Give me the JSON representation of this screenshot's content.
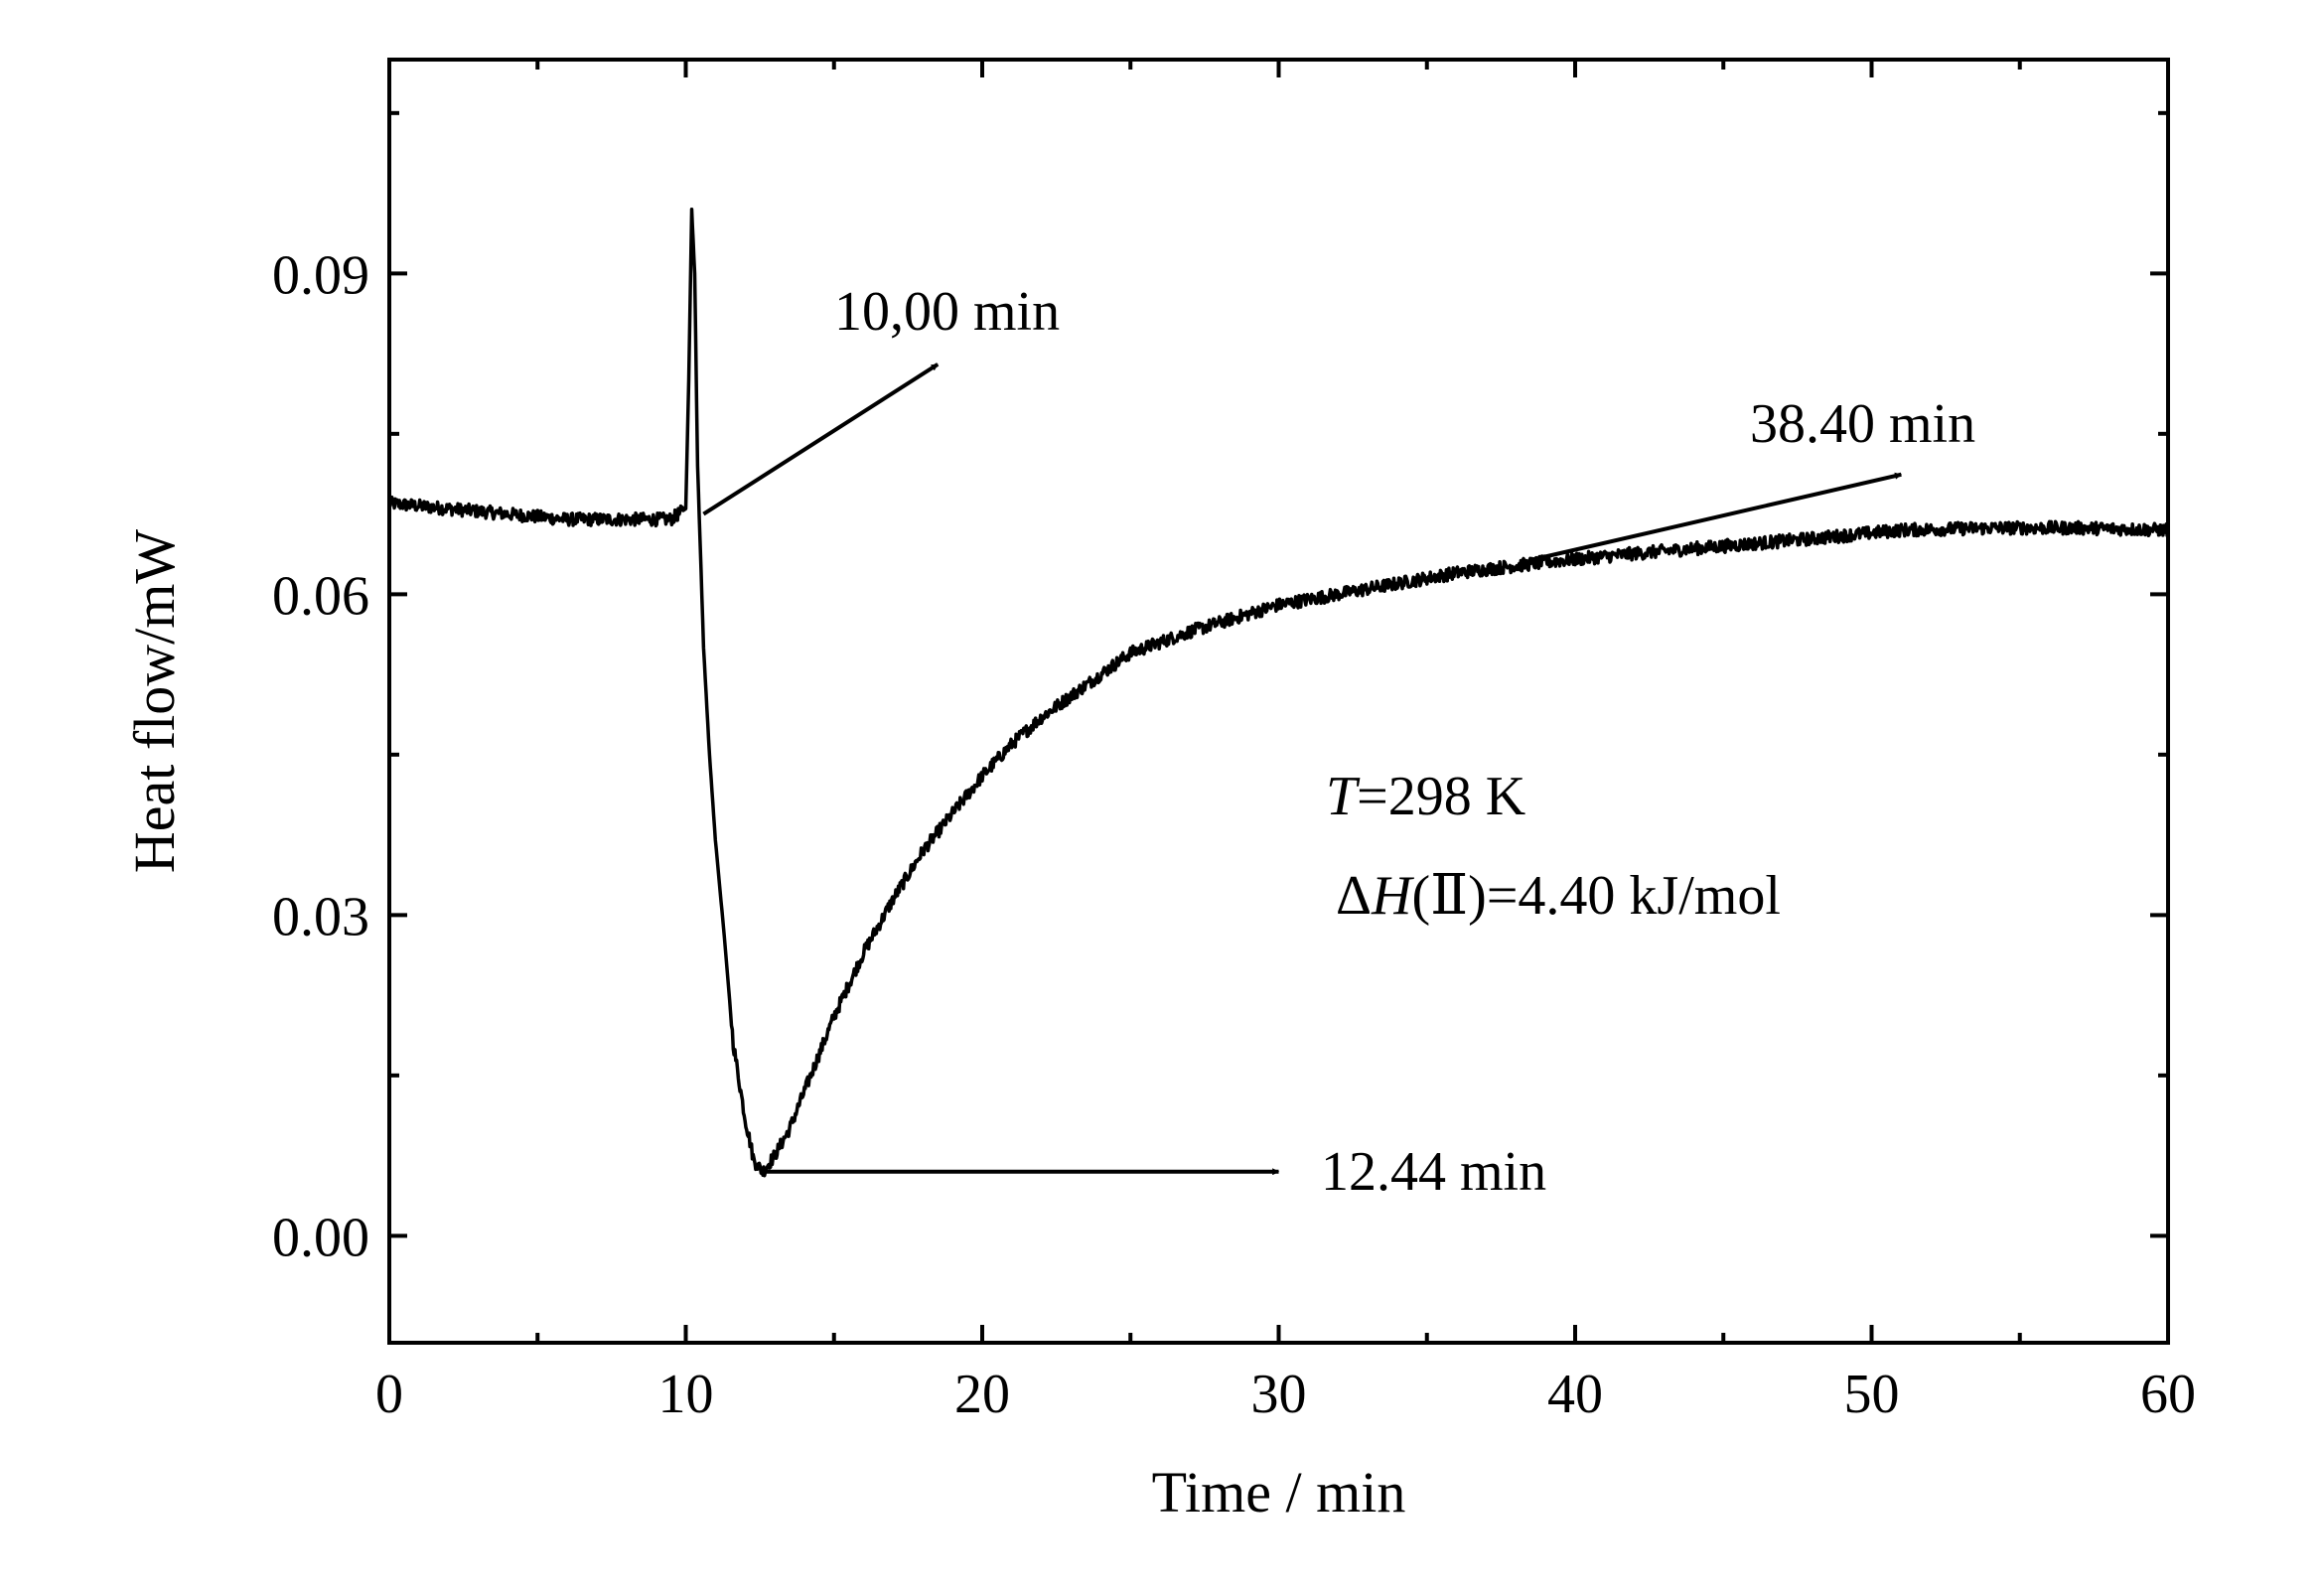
{
  "chart_data": {
    "type": "line",
    "xlabel": "Time / min",
    "ylabel": "Heat flow/mW",
    "xlim": [
      0,
      60
    ],
    "ylim": [
      -0.01,
      0.11
    ],
    "x_ticks": [
      0,
      10,
      20,
      30,
      40,
      50,
      60
    ],
    "x_minor_ticks": [
      5,
      15,
      25,
      35,
      45,
      55
    ],
    "x_tick_labels": [
      "0",
      "10",
      "20",
      "30",
      "40",
      "50",
      "60"
    ],
    "y_ticks": [
      0.0,
      0.03,
      0.06,
      0.09
    ],
    "y_minor_ticks": [
      -0.015,
      0.015,
      0.045,
      0.075,
      0.105
    ],
    "y_tick_labels": [
      "0.00",
      "0.03",
      "0.06",
      "0.09"
    ],
    "grid": false,
    "line_color": "#000000",
    "series": [
      {
        "x": [
          0,
          2,
          4,
          6,
          8,
          9.5,
          10.0,
          10.1,
          10.2,
          10.3,
          10.4,
          10.6,
          10.8,
          11.0,
          11.3,
          11.6,
          12.0,
          12.3,
          12.6,
          13.0,
          13.5,
          14.0,
          15.0,
          16.0,
          17.0,
          18.0,
          19.0,
          20.0,
          21.0,
          22.0,
          23.0,
          24.0,
          25.0,
          27.0,
          30.0,
          33.0,
          36.0,
          39.0,
          42.0,
          45.0,
          48.0,
          51.0,
          54.0,
          57.0,
          60.0
        ],
        "y": [
          0.0685,
          0.068,
          0.0675,
          0.067,
          0.067,
          0.067,
          0.068,
          0.08,
          0.096,
          0.09,
          0.072,
          0.055,
          0.045,
          0.037,
          0.028,
          0.018,
          0.011,
          0.007,
          0.006,
          0.0075,
          0.01,
          0.0135,
          0.0205,
          0.0265,
          0.0315,
          0.036,
          0.0395,
          0.043,
          0.046,
          0.0485,
          0.0505,
          0.0525,
          0.0545,
          0.0565,
          0.059,
          0.0605,
          0.062,
          0.063,
          0.0638,
          0.0645,
          0.0652,
          0.066,
          0.0662,
          0.0662,
          0.066
        ]
      }
    ],
    "annotations": [
      {
        "text": "10,00 min",
        "arrow_from": [
          10.6,
          0.0675
        ],
        "arrow_to": [
          18.5,
          0.0815
        ]
      },
      {
        "text": "12.44 min",
        "arrow_from": [
          12.6,
          0.006
        ],
        "arrow_to": [
          30.0,
          0.006
        ]
      },
      {
        "text": "38.40 min",
        "arrow_from": [
          38.5,
          0.0632
        ],
        "arrow_to": [
          51.0,
          0.0712
        ]
      }
    ],
    "condition_T_symbol": "T",
    "condition_T_value": "=298 K",
    "condition_H_delta": "Δ",
    "condition_H_symbol": "H",
    "condition_H_rest": "(Ⅱ)=4.40 kJ/mol"
  }
}
